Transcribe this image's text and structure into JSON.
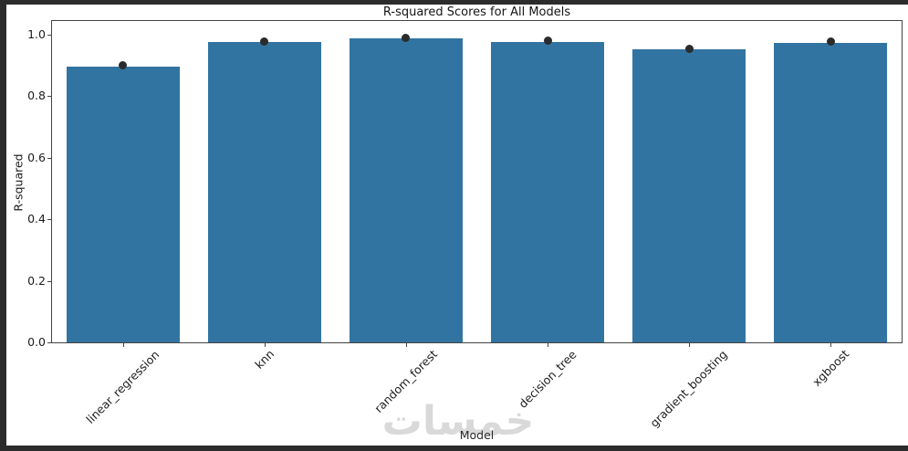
{
  "window": {
    "frame_color": "#2c2c2c",
    "background": "#ffffff"
  },
  "chart_data": {
    "type": "bar",
    "title": "R-squared Scores for All Models",
    "xlabel": "Model",
    "ylabel": "R-squared",
    "categories": [
      "linear_regression",
      "knn",
      "random_forest",
      "decision_tree",
      "gradient_boosting",
      "xgboost"
    ],
    "values": [
      0.895,
      0.975,
      0.987,
      0.977,
      0.951,
      0.973
    ],
    "series": [
      {
        "name": "bar-r-squared",
        "values": [
          0.895,
          0.975,
          0.987,
          0.977,
          0.951,
          0.973
        ]
      },
      {
        "name": "point-markers",
        "values": [
          0.9,
          0.977,
          0.99,
          0.98,
          0.954,
          0.976
        ]
      }
    ],
    "yticks": [
      "0.0",
      "0.2",
      "0.4",
      "0.6",
      "0.8",
      "1.0"
    ],
    "ylim": [
      0,
      1.044
    ],
    "bar_color": "#3274a1",
    "point_color": "#2b2b2b",
    "grid": false,
    "legend_position": "none"
  },
  "watermark": {
    "text": "خمسات",
    "color": "#d9d9d9"
  }
}
